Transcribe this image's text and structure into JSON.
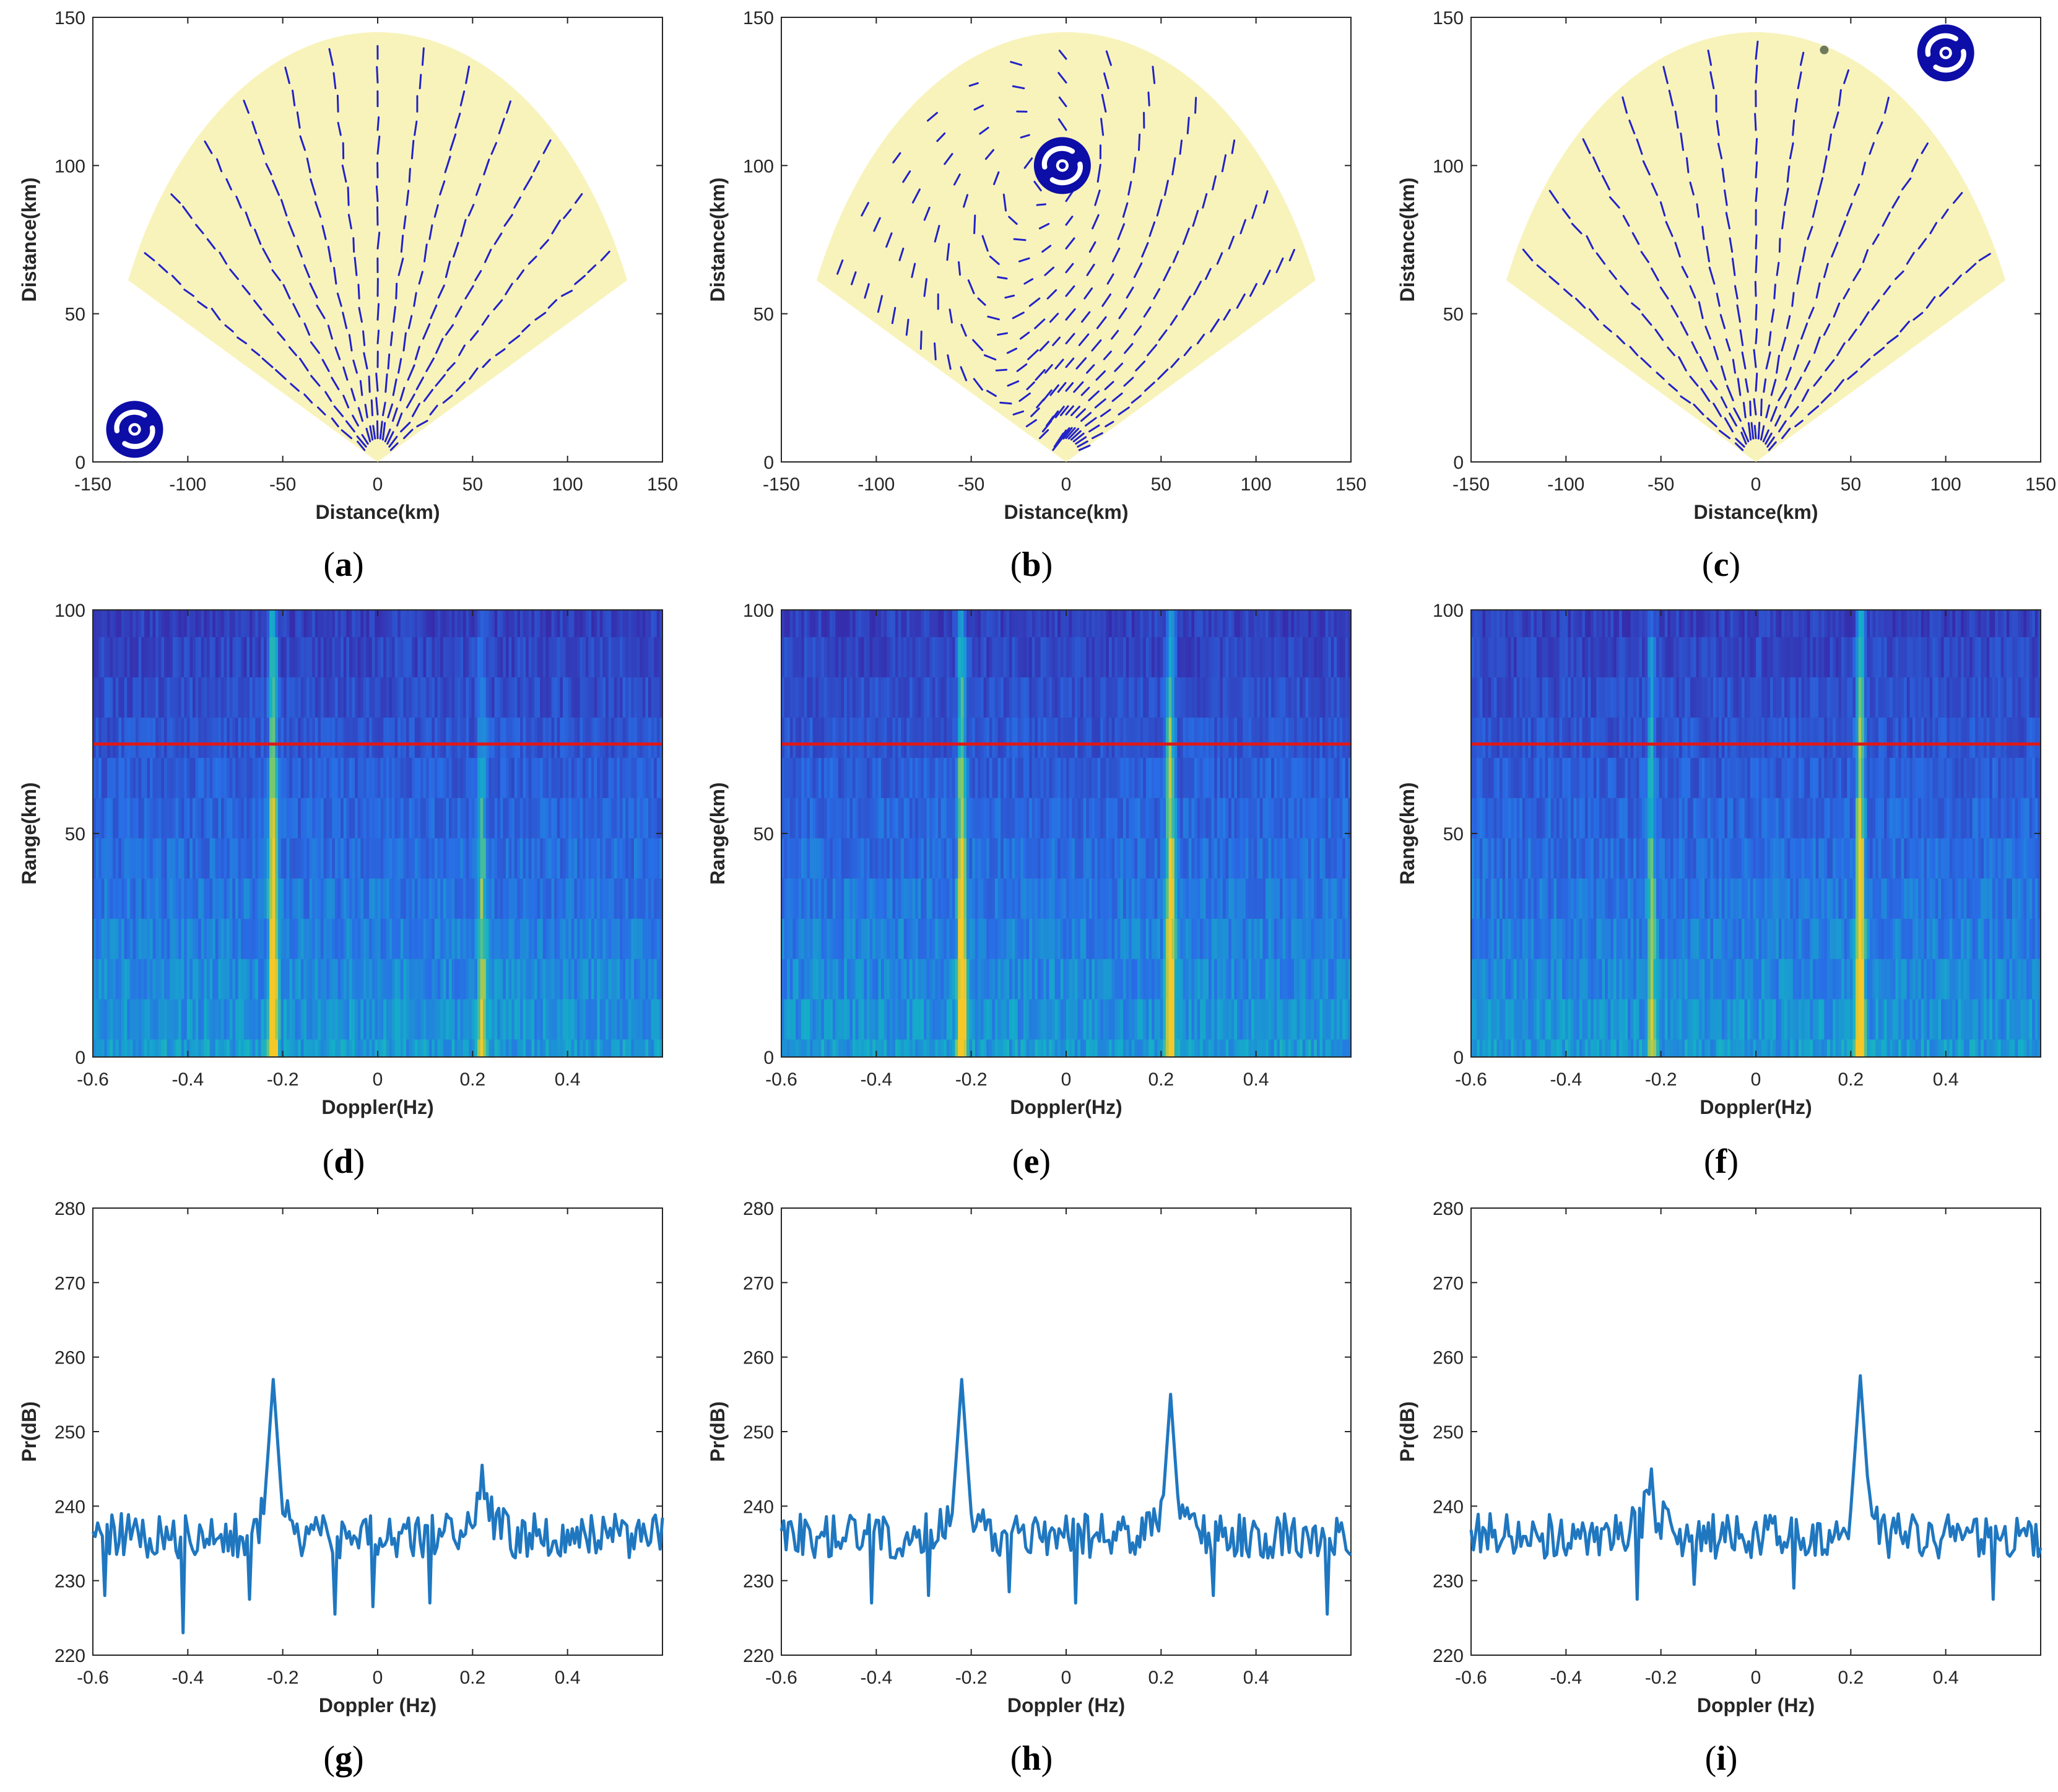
{
  "figure": {
    "captions": [
      "a",
      "b",
      "c",
      "d",
      "e",
      "f",
      "g",
      "h",
      "i"
    ]
  },
  "colors": {
    "sector_fill": "#f8f3bb",
    "vector": "#2222c8",
    "cyclone": "#0d0da8",
    "heat_low": "#3c30b4",
    "heat_high": "#f2c52a",
    "cut_line": "#e01818",
    "spectrum_line": "#1f77c0",
    "marker": "#6e7a5c"
  },
  "chart_data": [
    {
      "panel": "a",
      "type": "scatter",
      "subtype": "radar sector current-vector field",
      "xlabel": "Distance(km)",
      "ylabel": "Distance(km)",
      "xlim": [
        -150,
        150
      ],
      "ylim": [
        0,
        150
      ],
      "xticks": [
        -150,
        -100,
        -50,
        0,
        50,
        100,
        150
      ],
      "yticks": [
        0,
        50,
        100,
        150
      ],
      "sector": {
        "radius_km": 145,
        "angle_from_deg": -65,
        "angle_to_deg": 65
      },
      "cyclone_center_km": [
        -128,
        11
      ],
      "vector_pattern": "radial"
    },
    {
      "panel": "b",
      "type": "scatter",
      "subtype": "radar sector current-vector field",
      "xlabel": "Distance(km)",
      "ylabel": "Distance(km)",
      "xlim": [
        -150,
        150
      ],
      "ylim": [
        0,
        150
      ],
      "xticks": [
        -150,
        -100,
        -50,
        0,
        50,
        100,
        150
      ],
      "yticks": [
        0,
        50,
        100,
        150
      ],
      "sector": {
        "radius_km": 145,
        "angle_from_deg": -65,
        "angle_to_deg": 65
      },
      "cyclone_center_km": [
        -2,
        100
      ],
      "vector_pattern": "curved"
    },
    {
      "panel": "c",
      "type": "scatter",
      "subtype": "radar sector current-vector field",
      "xlabel": "Distance(km)",
      "ylabel": "Distance(km)",
      "xlim": [
        -150,
        150
      ],
      "ylim": [
        0,
        150
      ],
      "xticks": [
        -150,
        -100,
        -50,
        0,
        50,
        100,
        150
      ],
      "yticks": [
        0,
        50,
        100,
        150
      ],
      "sector": {
        "radius_km": 145,
        "angle_from_deg": -65,
        "angle_to_deg": 65
      },
      "cyclone_center_km": [
        100,
        138
      ],
      "marker_km": [
        36,
        139
      ],
      "vector_pattern": "radial"
    },
    {
      "panel": "d",
      "type": "heatmap",
      "xlabel": "Doppler(Hz)",
      "ylabel": "Range(km)",
      "xlim": [
        -0.6,
        0.6
      ],
      "ylim": [
        0,
        100
      ],
      "xticks": [
        -0.6,
        -0.4,
        -0.2,
        0,
        0.2,
        0.4
      ],
      "yticks": [
        0,
        50,
        100
      ],
      "bragg_peaks_hz": [
        -0.22,
        0.22
      ],
      "bragg_strength": [
        1.0,
        0.55
      ],
      "selected_range_km": 70
    },
    {
      "panel": "e",
      "type": "heatmap",
      "xlabel": "Doppler(Hz)",
      "ylabel": "Range(km)",
      "xlim": [
        -0.6,
        0.6
      ],
      "ylim": [
        0,
        100
      ],
      "xticks": [
        -0.6,
        -0.4,
        -0.2,
        0,
        0.2,
        0.4
      ],
      "yticks": [
        0,
        50,
        100
      ],
      "bragg_peaks_hz": [
        -0.22,
        0.22
      ],
      "bragg_strength": [
        0.95,
        0.95
      ],
      "selected_range_km": 70
    },
    {
      "panel": "f",
      "type": "heatmap",
      "xlabel": "Doppler(Hz)",
      "ylabel": "Range(km)",
      "xlim": [
        -0.6,
        0.6
      ],
      "ylim": [
        0,
        100
      ],
      "xticks": [
        -0.6,
        -0.4,
        -0.2,
        0,
        0.2,
        0.4
      ],
      "yticks": [
        0,
        50,
        100
      ],
      "bragg_peaks_hz": [
        -0.22,
        0.22
      ],
      "bragg_strength": [
        0.55,
        1.0
      ],
      "selected_range_km": 70
    },
    {
      "panel": "g",
      "type": "line",
      "xlabel": "Doppler (Hz)",
      "ylabel": "Pr(dB)",
      "xlim": [
        -0.6,
        0.6
      ],
      "ylim": [
        220,
        280
      ],
      "xticks": [
        -0.6,
        -0.4,
        -0.2,
        0,
        0.2,
        0.4
      ],
      "yticks": [
        220,
        230,
        240,
        250,
        260,
        270,
        280
      ],
      "peaks": [
        {
          "x": -0.22,
          "y": 257
        },
        {
          "x": 0.22,
          "y": 245.5
        }
      ],
      "dips": [
        {
          "x": -0.41,
          "y": 223
        },
        {
          "x": -0.575,
          "y": 228
        },
        {
          "x": -0.27,
          "y": 227.5
        },
        {
          "x": -0.09,
          "y": 225.5
        },
        {
          "x": -0.01,
          "y": 226.5
        },
        {
          "x": 0.11,
          "y": 227
        }
      ],
      "noise_floor_db": 236
    },
    {
      "panel": "h",
      "type": "line",
      "xlabel": "Doppler (Hz)",
      "ylabel": "Pr(dB)",
      "xlim": [
        -0.6,
        0.6
      ],
      "ylim": [
        220,
        280
      ],
      "xticks": [
        -0.6,
        -0.4,
        -0.2,
        0,
        0.2,
        0.4
      ],
      "yticks": [
        220,
        230,
        240,
        250,
        260,
        270,
        280
      ],
      "peaks": [
        {
          "x": -0.22,
          "y": 257
        },
        {
          "x": 0.22,
          "y": 255
        }
      ],
      "dips": [
        {
          "x": -0.41,
          "y": 227
        },
        {
          "x": -0.29,
          "y": 228
        },
        {
          "x": -0.12,
          "y": 228.5
        },
        {
          "x": 0.02,
          "y": 227
        },
        {
          "x": 0.31,
          "y": 228
        },
        {
          "x": 0.55,
          "y": 225.5
        }
      ],
      "noise_floor_db": 236
    },
    {
      "panel": "i",
      "type": "line",
      "xlabel": "Doppler (Hz)",
      "ylabel": "Pr(dB)",
      "xlim": [
        -0.6,
        0.6
      ],
      "ylim": [
        220,
        280
      ],
      "xticks": [
        -0.6,
        -0.4,
        -0.2,
        0,
        0.2,
        0.4
      ],
      "yticks": [
        220,
        230,
        240,
        250,
        260,
        270,
        280
      ],
      "peaks": [
        {
          "x": -0.22,
          "y": 245
        },
        {
          "x": 0.22,
          "y": 257.5
        }
      ],
      "dips": [
        {
          "x": -0.25,
          "y": 227.5
        },
        {
          "x": -0.13,
          "y": 229.5
        },
        {
          "x": 0.08,
          "y": 229
        },
        {
          "x": 0.5,
          "y": 227.5
        }
      ],
      "noise_floor_db": 236
    }
  ]
}
